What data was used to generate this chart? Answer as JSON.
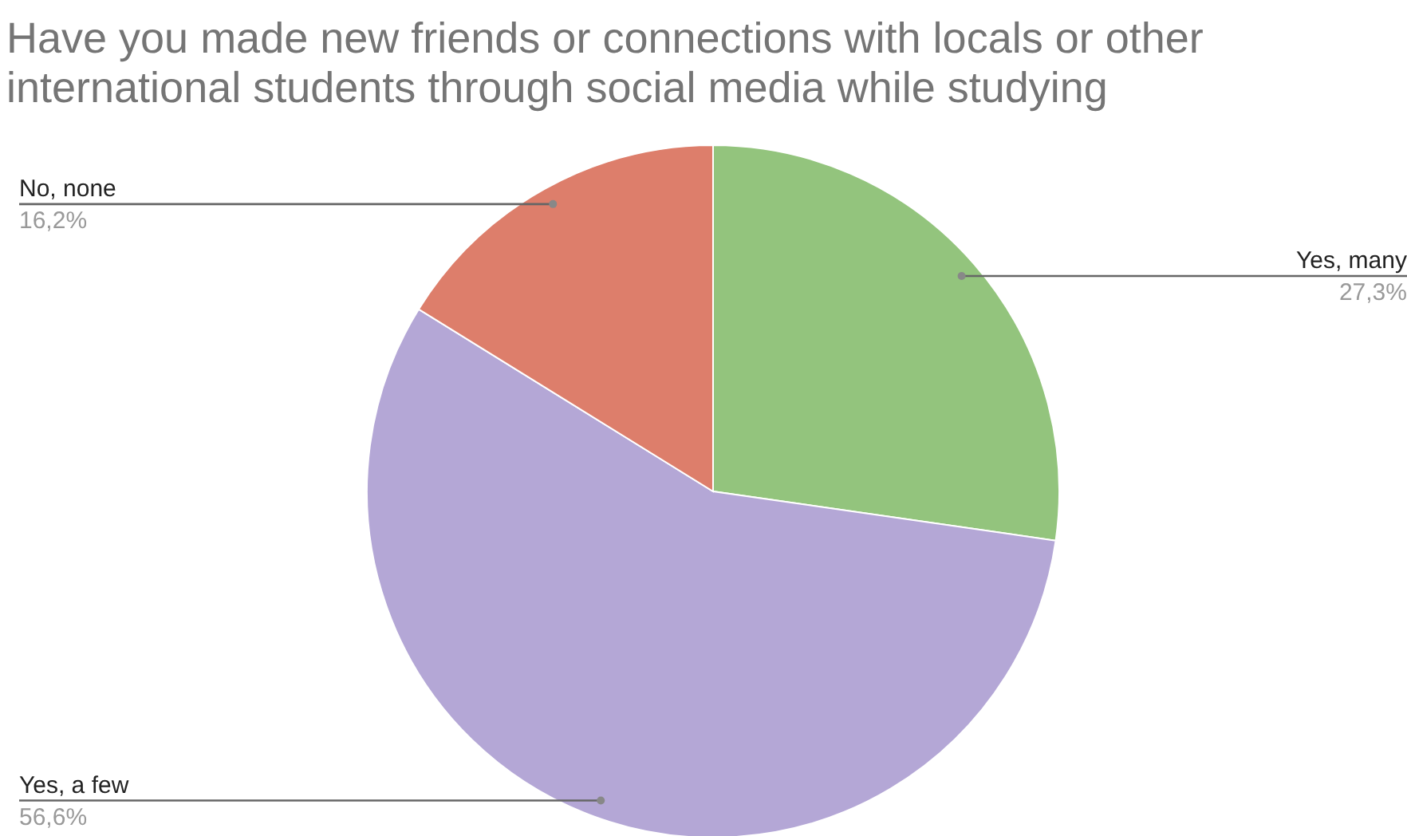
{
  "chart_data": {
    "type": "pie",
    "title": "Have you made new friends or connections with locals or other international students through social media while studying",
    "categories": [
      "Yes, many",
      "Yes, a few",
      "No, none"
    ],
    "values": [
      27.3,
      56.6,
      16.2
    ],
    "value_labels": [
      "27,3%",
      "56,6%",
      "16,2%"
    ],
    "colors": [
      "#93c47d",
      "#b4a7d6",
      "#dd7e6b"
    ]
  }
}
